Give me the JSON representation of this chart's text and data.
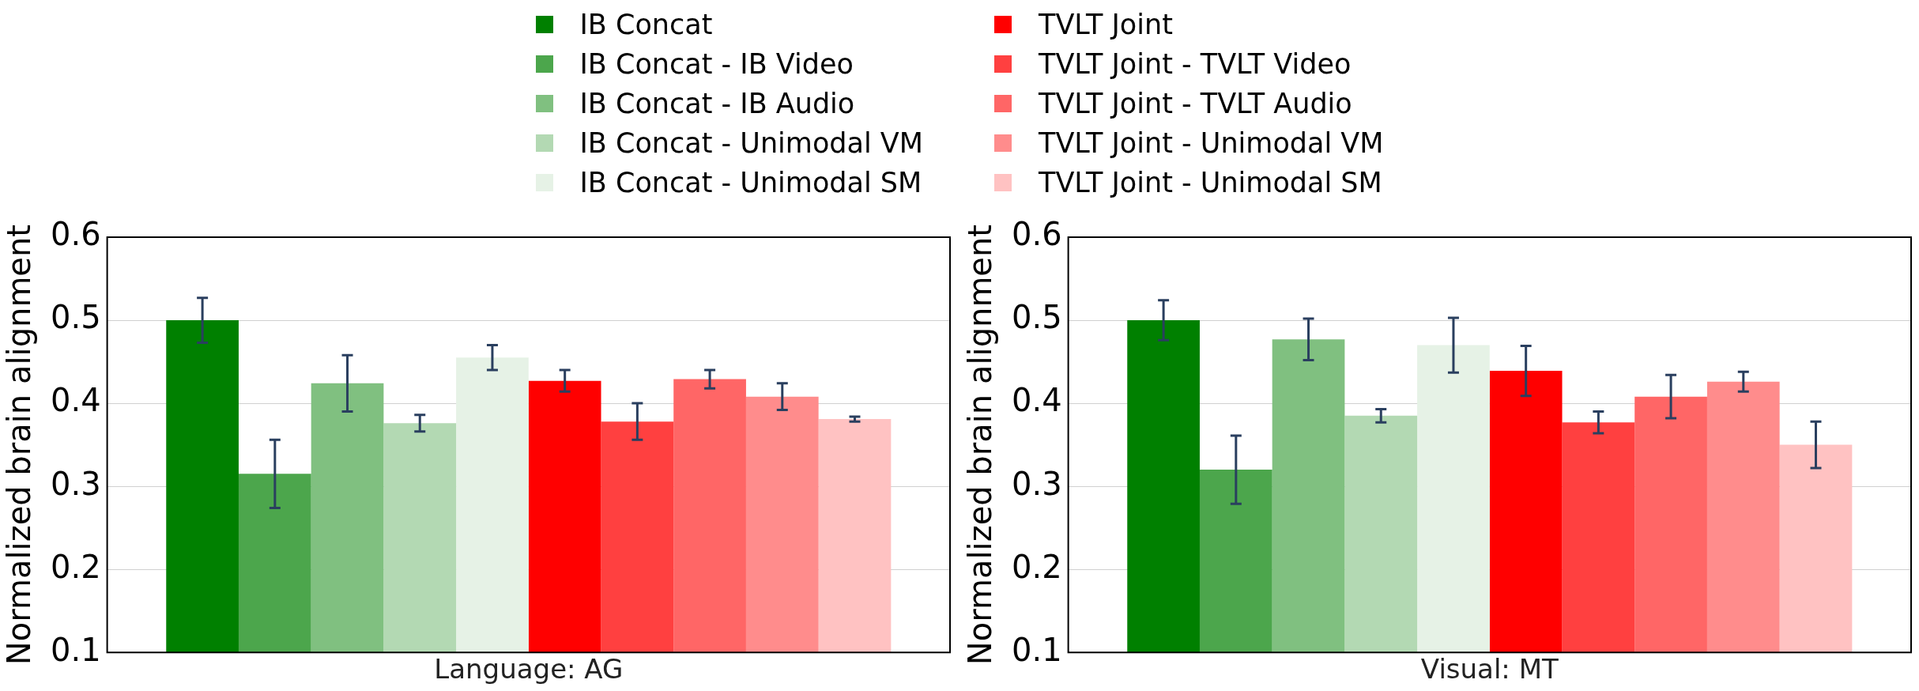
{
  "chart_data": [
    {
      "type": "bar",
      "categories": [
        "Language: AG"
      ],
      "ylabel": "Normalized brain alignment",
      "ylim": [
        0.1,
        0.6
      ],
      "yticks": [
        0.1,
        0.2,
        0.3,
        0.4,
        0.5,
        0.6
      ],
      "grid": true,
      "legend": "top",
      "series": [
        {
          "name": "IB Concat",
          "color": "#008000",
          "values": [
            0.5
          ],
          "errors": [
            0.027
          ]
        },
        {
          "name": "IB Concat - IB Video",
          "color": "#4ca64c",
          "values": [
            0.315
          ],
          "errors": [
            0.041
          ]
        },
        {
          "name": "IB Concat - IB Audio",
          "color": "#80c080",
          "values": [
            0.424
          ],
          "errors": [
            0.034
          ]
        },
        {
          "name": "IB Concat - Unimodal VM",
          "color": "#b3d9b3",
          "values": [
            0.376
          ],
          "errors": [
            0.01
          ]
        },
        {
          "name": "IB Concat - Unimodal SM",
          "color": "#e6f2e6",
          "values": [
            0.455
          ],
          "errors": [
            0.015
          ]
        },
        {
          "name": "TVLT Joint",
          "color": "#ff0000",
          "values": [
            0.427
          ],
          "errors": [
            0.013
          ]
        },
        {
          "name": "TVLT Joint - TVLT Video",
          "color": "#ff4040",
          "values": [
            0.378
          ],
          "errors": [
            0.022
          ]
        },
        {
          "name": "TVLT Joint - TVLT Audio",
          "color": "#ff6666",
          "values": [
            0.429
          ],
          "errors": [
            0.011
          ]
        },
        {
          "name": "TVLT Joint - Unimodal VM",
          "color": "#ff8c8c",
          "values": [
            0.408
          ],
          "errors": [
            0.016
          ]
        },
        {
          "name": "TVLT Joint - Unimodal SM",
          "color": "#ffc2c2",
          "values": [
            0.381
          ],
          "errors": [
            0.003
          ]
        }
      ]
    },
    {
      "type": "bar",
      "categories": [
        "Visual: MT"
      ],
      "ylabel": "Normalized brain alignment",
      "ylim": [
        0.1,
        0.6
      ],
      "yticks": [
        0.1,
        0.2,
        0.3,
        0.4,
        0.5,
        0.6
      ],
      "grid": true,
      "series": [
        {
          "color": "#008000",
          "values": [
            0.5
          ],
          "errors": [
            0.024
          ]
        },
        {
          "color": "#4ca64c",
          "values": [
            0.32
          ],
          "errors": [
            0.041
          ]
        },
        {
          "color": "#80c080",
          "values": [
            0.477
          ],
          "errors": [
            0.025
          ]
        },
        {
          "color": "#b3d9b3",
          "values": [
            0.385
          ],
          "errors": [
            0.008
          ]
        },
        {
          "color": "#e6f2e6",
          "values": [
            0.47
          ],
          "errors": [
            0.033
          ]
        },
        {
          "color": "#ff0000",
          "values": [
            0.439
          ],
          "errors": [
            0.03
          ]
        },
        {
          "color": "#ff4040",
          "values": [
            0.377
          ],
          "errors": [
            0.013
          ]
        },
        {
          "color": "#ff6666",
          "values": [
            0.408
          ],
          "errors": [
            0.026
          ]
        },
        {
          "color": "#ff8c8c",
          "values": [
            0.426
          ],
          "errors": [
            0.012
          ]
        },
        {
          "color": "#ffc2c2",
          "values": [
            0.35
          ],
          "errors": [
            0.028
          ]
        }
      ]
    }
  ]
}
